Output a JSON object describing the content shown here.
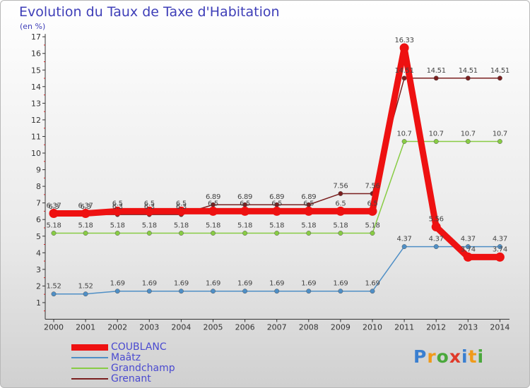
{
  "chart_data": {
    "type": "line",
    "title": "Evolution du Taux de Taxe d'Habitation",
    "ylabel": "(en %)",
    "categories": [
      "2000",
      "2001",
      "2002",
      "2003",
      "2004",
      "2005",
      "2006",
      "2007",
      "2008",
      "2009",
      "2010",
      "2011",
      "2012",
      "2013",
      "2014"
    ],
    "ylim": [
      0,
      17
    ],
    "yticks": [
      1,
      2,
      3,
      4,
      5,
      6,
      7,
      8,
      9,
      10,
      11,
      12,
      13,
      14,
      15,
      16,
      17
    ],
    "grid": false,
    "legend_position": "bottom-left",
    "series": [
      {
        "name": "COUBLANC",
        "color": "#ee1111",
        "values": [
          6.37,
          6.37,
          6.5,
          6.5,
          6.5,
          6.5,
          6.5,
          6.5,
          6.5,
          6.5,
          6.5,
          16.33,
          5.56,
          3.74,
          3.74
        ],
        "labels": [
          "6.37",
          "6.37",
          "6.5",
          "6.5",
          "6.5",
          "6.5",
          "6.5",
          "6.5",
          "6.5",
          "6.5",
          "6.5",
          "16.33",
          "5.56",
          "3.74",
          "3.74"
        ]
      },
      {
        "name": "Maâtz",
        "color": "#4f8fc6",
        "values": [
          1.52,
          1.52,
          1.69,
          1.69,
          1.69,
          1.69,
          1.69,
          1.69,
          1.69,
          1.69,
          1.69,
          4.37,
          4.37,
          4.37,
          4.37
        ],
        "labels": [
          "1.52",
          "1.52",
          "1.69",
          "1.69",
          "1.69",
          "1.69",
          "1.69",
          "1.69",
          "1.69",
          "1.69",
          "1.69",
          "4.37",
          "4.37",
          "4.37",
          "4.37"
        ]
      },
      {
        "name": "Grandchamp",
        "color": "#88cc44",
        "values": [
          5.18,
          5.18,
          5.18,
          5.18,
          5.18,
          5.18,
          5.18,
          5.18,
          5.18,
          5.18,
          5.18,
          10.7,
          10.7,
          10.7,
          10.7
        ],
        "labels": [
          "5.18",
          "5.18",
          "5.18",
          "5.18",
          "5.18",
          "5.18",
          "5.18",
          "5.18",
          "5.18",
          "5.18",
          "5.18",
          "10.7",
          "10.7",
          "10.7",
          "10.7"
        ]
      },
      {
        "name": "Grenant",
        "color": "#7a1f1f",
        "values": [
          6.3,
          6.3,
          6.3,
          6.3,
          6.3,
          6.89,
          6.89,
          6.89,
          6.89,
          7.56,
          7.56,
          14.51,
          14.51,
          14.51,
          14.51
        ],
        "labels": [
          "6.3",
          "6.3",
          "6.3",
          "6.3",
          "6.3",
          "6.89",
          "6.89",
          "6.89",
          "6.89",
          "7.56",
          "7.56",
          "14.51",
          "14.51",
          "14.51",
          "14.51"
        ]
      }
    ]
  },
  "logo": {
    "text": "Proxiti",
    "letters": [
      {
        "ch": "P",
        "color": "#3a7fd0"
      },
      {
        "ch": "r",
        "color": "#f09a1a"
      },
      {
        "ch": "o",
        "color": "#4aa83c"
      },
      {
        "ch": "x",
        "color": "#e03a2a"
      },
      {
        "ch": "i",
        "color": "#3a7fd0"
      },
      {
        "ch": "t",
        "color": "#f09a1a"
      },
      {
        "ch": "i",
        "color": "#4aa83c"
      }
    ]
  }
}
